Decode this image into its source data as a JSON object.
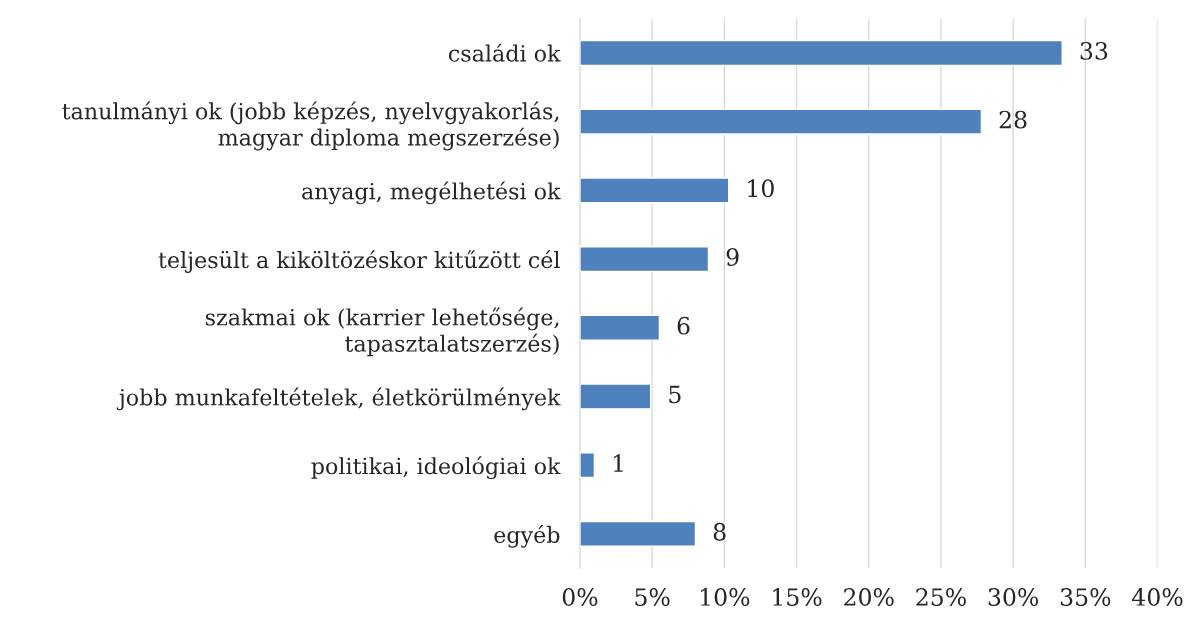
{
  "chart_data": {
    "type": "bar",
    "orientation": "horizontal",
    "categories": [
      "családi ok",
      "tanulmányi ok (jobb képzés, nyelvgyakorlás,\nmagyar diploma megszerzése)",
      "anyagi, megélhetési ok",
      "teljesült a kiköltözéskor kitűzött cél",
      "szakmai ok (karrier lehetősége,\ntapasztalatszerzés)",
      "jobb munkafeltételek, életkörülmények",
      "politikai, ideológiai ok",
      "egyéb"
    ],
    "values": [
      33.4,
      27.8,
      10.3,
      8.9,
      5.5,
      4.9,
      1.0,
      8.0
    ],
    "value_labels": [
      "33",
      "28",
      "10",
      "9",
      "6",
      "5",
      "1",
      "8"
    ],
    "color": "#4f81bd",
    "xlim": [
      0,
      40
    ],
    "xticks": [
      {
        "value": 0,
        "label": "0%"
      },
      {
        "value": 5,
        "label": "5%"
      },
      {
        "value": 10,
        "label": "10%"
      },
      {
        "value": 15,
        "label": "15%"
      },
      {
        "value": 20,
        "label": "20%"
      },
      {
        "value": 25,
        "label": "25%"
      },
      {
        "value": 30,
        "label": "30%"
      },
      {
        "value": 35,
        "label": "35%"
      },
      {
        "value": 40,
        "label": "40%"
      }
    ],
    "grid": "x"
  }
}
